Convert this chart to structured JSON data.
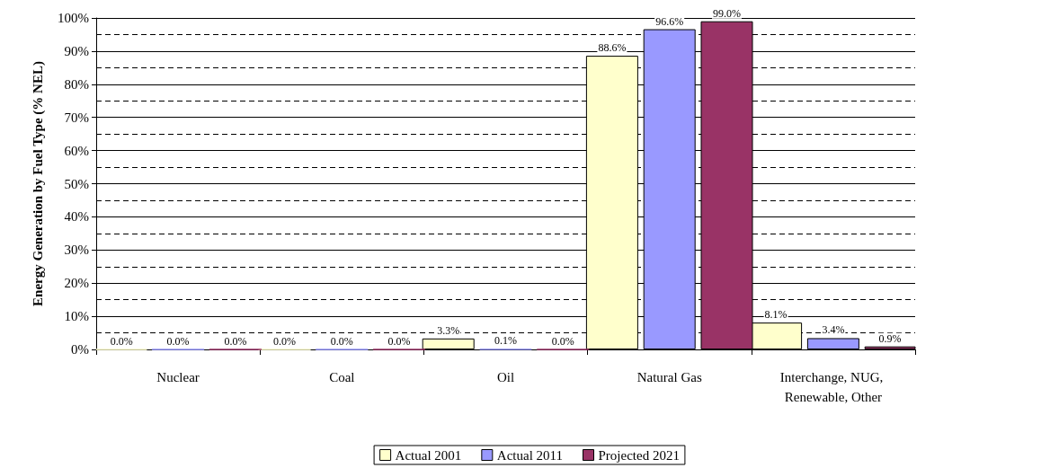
{
  "chart_data": {
    "type": "bar",
    "ylabel": "Energy Generation by Fuel Type (% NEL)",
    "categories": [
      "Nuclear",
      "Coal",
      "Oil",
      "Natural Gas",
      "Interchange, NUG, Renewable, Other"
    ],
    "series": [
      {
        "name": "Actual 2001",
        "color": "#ffffcc",
        "values": [
          0.0,
          0.0,
          3.3,
          88.6,
          8.1
        ],
        "value_labels": [
          "0.0%",
          "0.0%",
          "3.3%",
          "88.6%",
          "8.1%"
        ]
      },
      {
        "name": "Actual 2011",
        "color": "#9999ff",
        "values": [
          0.0,
          0.0,
          0.1,
          96.6,
          3.4
        ],
        "value_labels": [
          "0.0%",
          "0.0%",
          "0.1%",
          "96.6%",
          "3.4%"
        ]
      },
      {
        "name": "Projected 2021",
        "color": "#993366",
        "values": [
          0.0,
          0.0,
          0.0,
          99.0,
          0.9
        ],
        "value_labels": [
          "0.0%",
          "0.0%",
          "0.0%",
          "99.0%",
          "0.9%"
        ]
      }
    ],
    "ylim": [
      0,
      100
    ],
    "yticks": [
      {
        "value": 0,
        "label": "0%"
      },
      {
        "value": 10,
        "label": "10%"
      },
      {
        "value": 20,
        "label": "20%"
      },
      {
        "value": 30,
        "label": "30%"
      },
      {
        "value": 40,
        "label": "40%"
      },
      {
        "value": 50,
        "label": "50%"
      },
      {
        "value": 60,
        "label": "60%"
      },
      {
        "value": 70,
        "label": "70%"
      },
      {
        "value": 80,
        "label": "80%"
      },
      {
        "value": 90,
        "label": "90%"
      },
      {
        "value": 100,
        "label": "100%"
      }
    ],
    "grid": true,
    "legend": "bottom"
  }
}
